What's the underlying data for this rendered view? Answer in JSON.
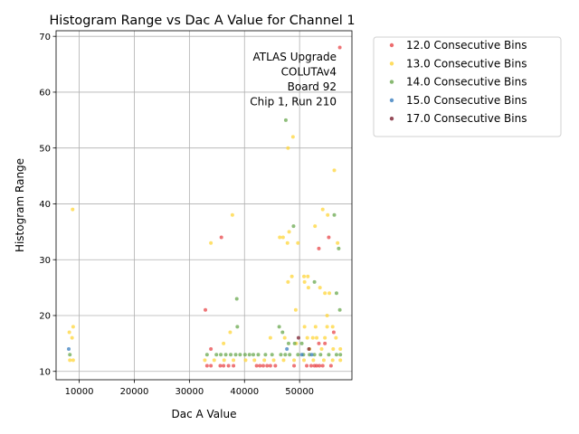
{
  "chart_data": {
    "type": "scatter",
    "title": "Histogram Range vs Dac A Value for Channel 1",
    "xlabel": "Dac A Value",
    "ylabel": "Histogram Range",
    "xlim": [
      5800,
      59500
    ],
    "ylim": [
      8.5,
      71
    ],
    "xticks": [
      10000,
      20000,
      30000,
      40000,
      50000
    ],
    "yticks": [
      10,
      20,
      30,
      40,
      50,
      60,
      70
    ],
    "grid": true,
    "legend_position": "outside-right",
    "annotation": [
      "ATLAS Upgrade",
      "COLUTAv4",
      "Board 92",
      "Chip 1, Run 210"
    ],
    "series": [
      {
        "name": "12.0 Consecutive Bins",
        "color": "#e8474a",
        "points": [
          [
            57300,
            68
          ],
          [
            35800,
            34
          ],
          [
            55300,
            34
          ],
          [
            53500,
            32
          ],
          [
            32900,
            21
          ],
          [
            56200,
            17
          ],
          [
            33900,
            14
          ],
          [
            33200,
            11
          ],
          [
            33900,
            11
          ],
          [
            35600,
            11
          ],
          [
            36200,
            11
          ],
          [
            37100,
            11
          ],
          [
            38000,
            11
          ],
          [
            42200,
            11
          ],
          [
            42800,
            11
          ],
          [
            43400,
            11
          ],
          [
            44100,
            11
          ],
          [
            44700,
            11
          ],
          [
            45600,
            11
          ],
          [
            49000,
            11
          ],
          [
            51300,
            11
          ],
          [
            52100,
            11
          ],
          [
            52700,
            11
          ],
          [
            53100,
            11
          ],
          [
            53600,
            11
          ],
          [
            54200,
            11
          ],
          [
            55700,
            11
          ],
          [
            53500,
            15
          ],
          [
            54600,
            15
          ]
        ]
      },
      {
        "name": "13.0 Consecutive Bins",
        "color": "#ffd53a",
        "points": [
          [
            56300,
            46
          ],
          [
            8800,
            39
          ],
          [
            54200,
            39
          ],
          [
            37800,
            38
          ],
          [
            55100,
            38
          ],
          [
            33900,
            33
          ],
          [
            47800,
            33
          ],
          [
            49700,
            33
          ],
          [
            56900,
            33
          ],
          [
            52800,
            36
          ],
          [
            48100,
            35
          ],
          [
            46400,
            34
          ],
          [
            47000,
            34
          ],
          [
            48600,
            27
          ],
          [
            50800,
            27
          ],
          [
            51500,
            27
          ],
          [
            47900,
            26
          ],
          [
            50900,
            26
          ],
          [
            51600,
            25
          ],
          [
            53700,
            25
          ],
          [
            54600,
            24
          ],
          [
            55400,
            24
          ],
          [
            49300,
            21
          ],
          [
            55000,
            20
          ],
          [
            8900,
            18
          ],
          [
            50900,
            18
          ],
          [
            52900,
            18
          ],
          [
            55000,
            18
          ],
          [
            56000,
            18
          ],
          [
            8200,
            17
          ],
          [
            37400,
            17
          ],
          [
            44700,
            16
          ],
          [
            47300,
            16
          ],
          [
            51400,
            16
          ],
          [
            52400,
            16
          ],
          [
            53100,
            16
          ],
          [
            54600,
            16
          ],
          [
            56600,
            16
          ],
          [
            8700,
            16
          ],
          [
            47900,
            50
          ],
          [
            48800,
            52
          ],
          [
            8300,
            12
          ],
          [
            8900,
            12
          ],
          [
            32800,
            12
          ],
          [
            34500,
            12
          ],
          [
            36300,
            12
          ],
          [
            38000,
            12
          ],
          [
            40200,
            12
          ],
          [
            41800,
            12
          ],
          [
            43600,
            12
          ],
          [
            45300,
            12
          ],
          [
            47100,
            12
          ],
          [
            49000,
            12
          ],
          [
            50800,
            12
          ],
          [
            52500,
            12
          ],
          [
            54400,
            12
          ],
          [
            56000,
            12
          ],
          [
            57400,
            12
          ],
          [
            36200,
            15
          ],
          [
            49400,
            15
          ],
          [
            54000,
            14
          ],
          [
            56100,
            14
          ],
          [
            51800,
            14
          ],
          [
            57400,
            14
          ]
        ]
      },
      {
        "name": "14.0 Consecutive Bins",
        "color": "#6aa84f",
        "points": [
          [
            47500,
            55
          ],
          [
            56300,
            38
          ],
          [
            57100,
            32
          ],
          [
            48900,
            36
          ],
          [
            52700,
            26
          ],
          [
            38600,
            23
          ],
          [
            56700,
            24
          ],
          [
            57300,
            21
          ],
          [
            38700,
            18
          ],
          [
            46300,
            18
          ],
          [
            46900,
            17
          ],
          [
            48000,
            15
          ],
          [
            49100,
            15
          ],
          [
            50400,
            15
          ],
          [
            8300,
            13
          ],
          [
            33200,
            13
          ],
          [
            34900,
            13
          ],
          [
            35700,
            13
          ],
          [
            36600,
            13
          ],
          [
            37500,
            13
          ],
          [
            38400,
            13
          ],
          [
            39200,
            13
          ],
          [
            40100,
            13
          ],
          [
            40900,
            13
          ],
          [
            41600,
            13
          ],
          [
            42500,
            13
          ],
          [
            43800,
            13
          ],
          [
            45000,
            13
          ],
          [
            46600,
            13
          ],
          [
            47400,
            13
          ],
          [
            48200,
            13
          ],
          [
            49700,
            13
          ],
          [
            50700,
            13
          ],
          [
            51800,
            13
          ],
          [
            52700,
            13
          ],
          [
            53800,
            13
          ],
          [
            55300,
            13
          ],
          [
            56700,
            13
          ],
          [
            57400,
            13
          ]
        ]
      },
      {
        "name": "15.0 Consecutive Bins",
        "color": "#3a7ebf",
        "points": [
          [
            8100,
            14
          ],
          [
            47700,
            14
          ],
          [
            50400,
            13
          ],
          [
            52200,
            13
          ]
        ]
      },
      {
        "name": "17.0 Consecutive Bins",
        "color": "#7a1f2f",
        "points": [
          [
            49800,
            16
          ],
          [
            51700,
            14
          ]
        ]
      }
    ]
  }
}
